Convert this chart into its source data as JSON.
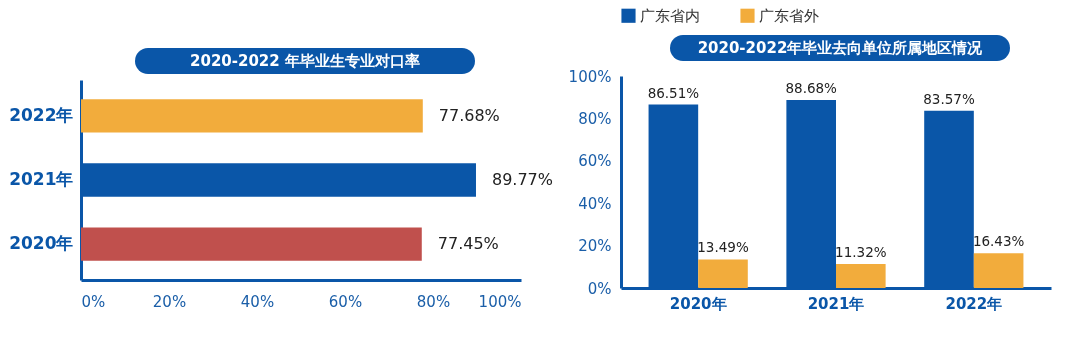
{
  "chart_data": [
    {
      "type": "bar",
      "orientation": "horizontal",
      "title": "2020-2022 年毕业生专业对口率",
      "categories": [
        "2022年",
        "2021年",
        "2020年"
      ],
      "values": [
        77.68,
        89.77,
        77.45
      ],
      "colors": [
        "#f2ac3c",
        "#0a56a8",
        "#c0504d"
      ],
      "value_labels": [
        "77.68%",
        "89.77%",
        "77.45%"
      ],
      "xlim": [
        0,
        100
      ],
      "xticks": [
        {
          "value": 0,
          "label": "0%"
        },
        {
          "value": 20,
          "label": "20%"
        },
        {
          "value": 40,
          "label": "40%"
        },
        {
          "value": 60,
          "label": "60%"
        },
        {
          "value": 80,
          "label": "80%"
        },
        {
          "value": 100,
          "label": "100%"
        }
      ]
    },
    {
      "type": "bar",
      "title": "2020-2022年毕业去向单位所属地区情况",
      "categories": [
        "2020年",
        "2021年",
        "2022年"
      ],
      "series": [
        {
          "name": "广东省内",
          "color": "#0a56a8",
          "values": [
            86.51,
            88.68,
            83.57
          ],
          "value_labels": [
            "86.51%",
            "88.68%",
            "83.57%"
          ]
        },
        {
          "name": "广东省外",
          "color": "#f2ac3c",
          "values": [
            13.49,
            11.32,
            16.43
          ],
          "value_labels": [
            "13.49%",
            "11.32%",
            "16.43%"
          ]
        }
      ],
      "ylim": [
        0,
        100
      ],
      "yticks": [
        {
          "value": 0,
          "label": "0%"
        },
        {
          "value": 20,
          "label": "20%"
        },
        {
          "value": 40,
          "label": "40%"
        },
        {
          "value": 60,
          "label": "60%"
        },
        {
          "value": 80,
          "label": "80%"
        },
        {
          "value": 100,
          "label": "100%"
        }
      ],
      "legend": "top left"
    }
  ]
}
